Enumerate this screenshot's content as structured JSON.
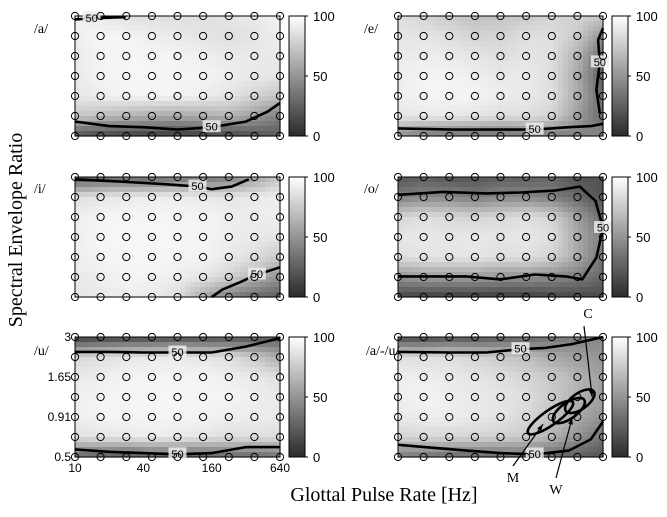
{
  "chart_data": {
    "type": "heatmap",
    "ylabel": "Spectral Envelope Ratio",
    "xlabel": "Glottal Pulse Rate [Hz]",
    "x_ticks": [
      "10",
      "40",
      "160",
      "640"
    ],
    "y_ticks": [
      "0.5",
      "0.91",
      "1.65",
      "3"
    ],
    "xlim": [
      10,
      640
    ],
    "ylim": [
      0.5,
      3
    ],
    "grid_points": {
      "columns": 9,
      "rows": 7
    },
    "contour_level": "50",
    "colorbar": {
      "ticks": [
        "0",
        "50",
        "100"
      ],
      "range": [
        0,
        100
      ]
    },
    "annotations": {
      "C": "C",
      "W": "W",
      "M": "M"
    },
    "panels": [
      {
        "title": "/a/",
        "values": [
          [
            95,
            90,
            85,
            85,
            85,
            85,
            88,
            90,
            95
          ],
          [
            92,
            96,
            95,
            92,
            90,
            88,
            85,
            88,
            92
          ],
          [
            90,
            95,
            96,
            95,
            95,
            92,
            90,
            90,
            90
          ],
          [
            90,
            95,
            96,
            96,
            95,
            95,
            92,
            90,
            88
          ],
          [
            88,
            92,
            95,
            95,
            95,
            92,
            88,
            80,
            72
          ],
          [
            75,
            70,
            65,
            62,
            60,
            62,
            65,
            55,
            40
          ],
          [
            20,
            15,
            12,
            10,
            10,
            12,
            15,
            20,
            25
          ]
        ],
        "contours": [
          {
            "label": "50",
            "points": [
              [
                10,
                2.85
              ],
              [
                14,
                2.9
              ],
              [
                28,
                2.95
              ]
            ]
          },
          {
            "label": "50",
            "points": [
              [
                10,
                0.62
              ],
              [
                20,
                0.58
              ],
              [
                40,
                0.57
              ],
              [
                80,
                0.55
              ],
              [
                160,
                0.57
              ],
              [
                320,
                0.62
              ],
              [
                500,
                0.72
              ],
              [
                640,
                0.82
              ]
            ]
          }
        ]
      },
      {
        "title": "/e/",
        "values": [
          [
            85,
            80,
            75,
            70,
            72,
            75,
            80,
            80,
            75
          ],
          [
            88,
            88,
            85,
            80,
            80,
            85,
            85,
            75,
            50
          ],
          [
            90,
            92,
            90,
            88,
            85,
            88,
            85,
            65,
            30
          ],
          [
            92,
            95,
            95,
            92,
            90,
            90,
            85,
            60,
            25
          ],
          [
            92,
            95,
            95,
            95,
            92,
            90,
            85,
            62,
            30
          ],
          [
            88,
            90,
            90,
            88,
            85,
            85,
            80,
            55,
            30
          ],
          [
            50,
            40,
            35,
            35,
            35,
            38,
            40,
            40,
            45
          ]
        ],
        "contours": [
          {
            "label": "50",
            "points": [
              [
                640,
                2.5
              ],
              [
                580,
                2.1
              ],
              [
                600,
                1.5
              ],
              [
                560,
                1.0
              ],
              [
                600,
                0.7
              ]
            ]
          },
          {
            "label": "50",
            "points": [
              [
                10,
                0.56
              ],
              [
                30,
                0.55
              ],
              [
                60,
                0.55
              ],
              [
                160,
                0.55
              ],
              [
                320,
                0.57
              ],
              [
                500,
                0.58
              ],
              [
                640,
                0.6
              ]
            ]
          }
        ]
      },
      {
        "title": "/i/",
        "values": [
          [
            20,
            25,
            30,
            30,
            35,
            35,
            40,
            55,
            75
          ],
          [
            85,
            88,
            90,
            92,
            92,
            90,
            88,
            90,
            92
          ],
          [
            92,
            95,
            96,
            96,
            95,
            95,
            92,
            92,
            92
          ],
          [
            92,
            96,
            96,
            96,
            96,
            95,
            92,
            90,
            88
          ],
          [
            92,
            95,
            96,
            96,
            95,
            95,
            90,
            85,
            75
          ],
          [
            90,
            92,
            95,
            95,
            92,
            88,
            80,
            65,
            50
          ],
          [
            88,
            90,
            92,
            90,
            85,
            60,
            40,
            30,
            25
          ]
        ],
        "contours": [
          {
            "label": "50",
            "points": [
              [
                10,
                2.9
              ],
              [
                25,
                2.8
              ],
              [
                60,
                2.7
              ],
              [
                120,
                2.6
              ],
              [
                160,
                2.5
              ],
              [
                240,
                2.6
              ],
              [
                340,
                2.9
              ]
            ]
          },
          {
            "label": "50",
            "points": [
              [
                160,
                0.5
              ],
              [
                200,
                0.56
              ],
              [
                280,
                0.62
              ],
              [
                400,
                0.7
              ],
              [
                550,
                0.75
              ],
              [
                640,
                0.78
              ]
            ]
          }
        ]
      },
      {
        "title": "/o/",
        "values": [
          [
            20,
            25,
            20,
            20,
            25,
            25,
            30,
            20,
            20
          ],
          [
            40,
            45,
            45,
            40,
            45,
            45,
            40,
            30,
            20
          ],
          [
            80,
            85,
            82,
            80,
            82,
            85,
            80,
            55,
            30
          ],
          [
            88,
            90,
            88,
            90,
            88,
            90,
            85,
            60,
            40
          ],
          [
            85,
            88,
            88,
            88,
            85,
            85,
            80,
            60,
            35
          ],
          [
            50,
            55,
            55,
            55,
            50,
            50,
            45,
            40,
            30
          ],
          [
            15,
            12,
            10,
            10,
            10,
            10,
            15,
            15,
            15
          ]
        ],
        "contours": [
          {
            "label": "50",
            "points": [
              [
                10,
                2.3
              ],
              [
                25,
                2.4
              ],
              [
                60,
                2.35
              ],
              [
                120,
                2.38
              ],
              [
                240,
                2.45
              ],
              [
                400,
                2.6
              ],
              [
                550,
                2.1
              ],
              [
                640,
                1.4
              ],
              [
                560,
                0.9
              ],
              [
                420,
                0.65
              ],
              [
                300,
                0.68
              ],
              [
                160,
                0.7
              ],
              [
                80,
                0.65
              ],
              [
                40,
                0.68
              ],
              [
                10,
                0.68
              ]
            ]
          }
        ]
      },
      {
        "title": "/u/",
        "values": [
          [
            10,
            12,
            15,
            15,
            18,
            18,
            20,
            20,
            25
          ],
          [
            80,
            85,
            88,
            90,
            90,
            88,
            85,
            75,
            60
          ],
          [
            90,
            92,
            95,
            95,
            95,
            95,
            92,
            90,
            85
          ],
          [
            92,
            95,
            95,
            96,
            96,
            95,
            95,
            92,
            90
          ],
          [
            92,
            95,
            95,
            95,
            95,
            95,
            92,
            92,
            90
          ],
          [
            85,
            88,
            90,
            92,
            90,
            88,
            85,
            85,
            85
          ],
          [
            30,
            25,
            20,
            25,
            25,
            25,
            30,
            30,
            35
          ]
        ],
        "contours": [
          {
            "label": "50",
            "points": [
              [
                10,
                2.4
              ],
              [
                20,
                2.4
              ],
              [
                40,
                2.38
              ],
              [
                80,
                2.38
              ],
              [
                160,
                2.38
              ],
              [
                320,
                2.6
              ],
              [
                640,
                2.95
              ]
            ]
          },
          {
            "label": "50",
            "points": [
              [
                10,
                0.56
              ],
              [
                20,
                0.54
              ],
              [
                40,
                0.53
              ],
              [
                80,
                0.52
              ],
              [
                160,
                0.53
              ],
              [
                320,
                0.58
              ],
              [
                640,
                0.58
              ]
            ]
          }
        ]
      },
      {
        "title": "/a/-/u/",
        "values": [
          [
            15,
            15,
            20,
            20,
            25,
            30,
            35,
            40,
            45
          ],
          [
            85,
            85,
            85,
            80,
            75,
            70,
            60,
            55,
            50
          ],
          [
            92,
            92,
            90,
            88,
            85,
            80,
            75,
            65,
            55
          ],
          [
            92,
            95,
            92,
            90,
            88,
            85,
            75,
            65,
            55
          ],
          [
            90,
            92,
            92,
            90,
            88,
            82,
            72,
            60,
            50
          ],
          [
            80,
            82,
            82,
            80,
            78,
            75,
            65,
            50,
            35
          ],
          [
            40,
            35,
            30,
            30,
            30,
            30,
            28,
            25,
            20
          ]
        ],
        "contours": [
          {
            "label": "50",
            "points": [
              [
                10,
                2.4
              ],
              [
                30,
                2.38
              ],
              [
                60,
                2.38
              ],
              [
                120,
                2.5
              ],
              [
                200,
                2.55
              ],
              [
                340,
                2.7
              ],
              [
                640,
                3.0
              ]
            ]
          },
          {
            "label": "50",
            "points": [
              [
                10,
                0.6
              ],
              [
                40,
                0.55
              ],
              [
                80,
                0.53
              ],
              [
                160,
                0.52
              ],
              [
                320,
                0.55
              ],
              [
                500,
                0.65
              ],
              [
                640,
                0.85
              ]
            ]
          }
        ],
        "ellipses": [
          {
            "label": "M",
            "cx": 220,
            "cy": 0.9,
            "rx_oct": 0.8,
            "ry_log": 0.11
          },
          {
            "label": "W",
            "cx": 320,
            "cy": 1.0,
            "rx_oct": 0.55,
            "ry_log": 0.12
          },
          {
            "label": "C",
            "cx": 400,
            "cy": 1.15,
            "rx_oct": 0.5,
            "ry_log": 0.12
          }
        ]
      }
    ]
  }
}
